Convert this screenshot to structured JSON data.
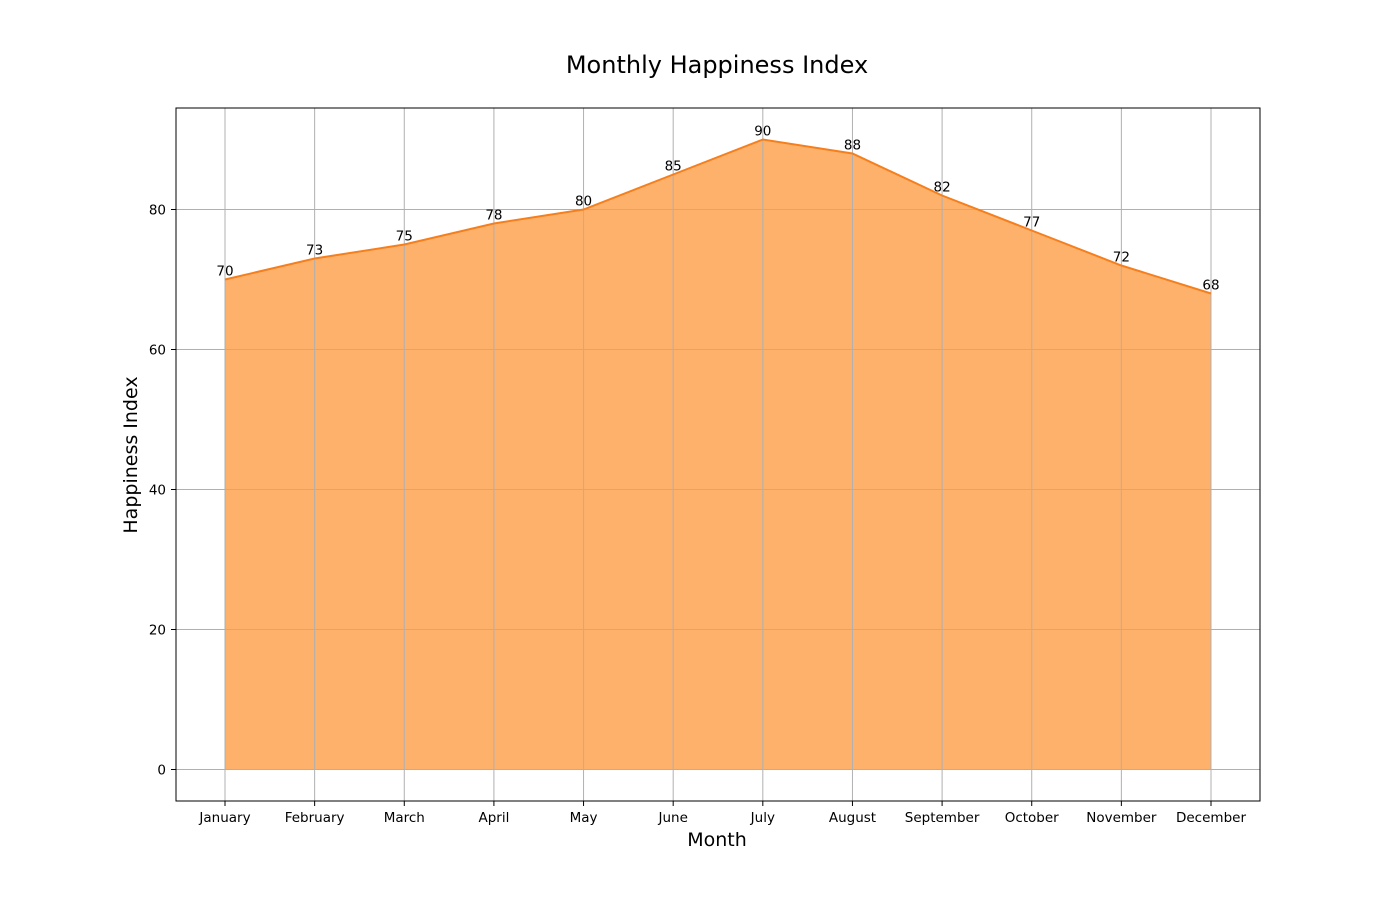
{
  "chart_data": {
    "type": "area",
    "title": "Monthly Happiness Index",
    "xlabel": "Month",
    "ylabel": "Happiness Index",
    "categories": [
      "January",
      "February",
      "March",
      "April",
      "May",
      "June",
      "July",
      "August",
      "September",
      "October",
      "November",
      "December"
    ],
    "series": [
      {
        "values": [
          70,
          73,
          75,
          78,
          80,
          85,
          90,
          88,
          82,
          77,
          72,
          68
        ]
      }
    ],
    "ylim": [
      -4.5,
      94.5
    ],
    "yticks": [
      0,
      20,
      40,
      60,
      80
    ],
    "grid": true,
    "colors": {
      "fill": "#fdb16b",
      "line": "#f67f1d"
    }
  }
}
